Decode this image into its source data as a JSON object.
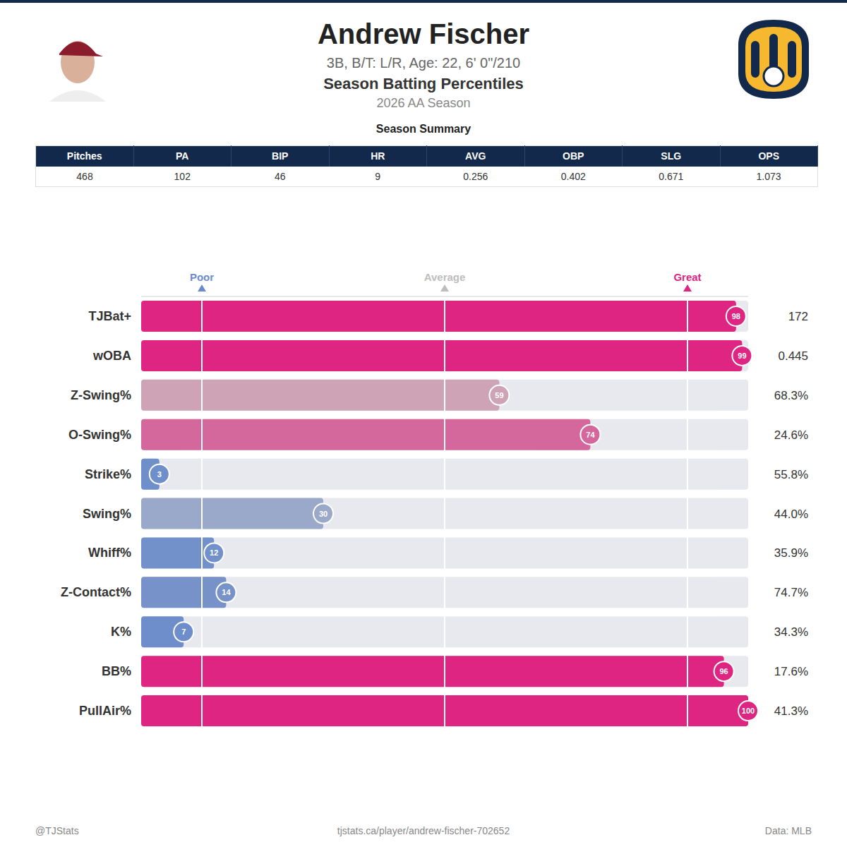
{
  "header": {
    "title": "Andrew Fischer",
    "subtitle": "3B, B/T: L/R, Age: 22, 6' 0\"/210",
    "heading": "Season Batting Percentiles",
    "season": "2026 AA Season"
  },
  "summary": {
    "title": "Season Summary",
    "columns": [
      "Pitches",
      "PA",
      "BIP",
      "HR",
      "AVG",
      "OBP",
      "SLG",
      "OPS"
    ],
    "row": [
      "468",
      "102",
      "46",
      "9",
      "0.256",
      "0.402",
      "0.671",
      "1.073"
    ]
  },
  "chart_data": {
    "type": "bar",
    "orientation": "horizontal",
    "categories": [
      "TJBat+",
      "wOBA",
      "Z-Swing%",
      "O-Swing%",
      "Strike%",
      "Swing%",
      "Whiff%",
      "Z-Contact%",
      "K%",
      "BB%",
      "PullAir%"
    ],
    "values": [
      98,
      99,
      59,
      74,
      3,
      30,
      12,
      14,
      7,
      96,
      100
    ],
    "stats": [
      "172",
      "0.445",
      "68.3%",
      "24.6%",
      "55.8%",
      "44.0%",
      "35.9%",
      "74.7%",
      "34.3%",
      "17.6%",
      "41.3%"
    ],
    "colors": [
      "#dd2581",
      "#dd2581",
      "#cfa3b6",
      "#d4679b",
      "#6f8fcb",
      "#9aa9c9",
      "#7290c9",
      "#7692c9",
      "#6e8ecb",
      "#dd2581",
      "#dd2581"
    ],
    "xlim": [
      0,
      100
    ],
    "xticks": [
      {
        "value": 10,
        "label": "Poor"
      },
      {
        "value": 50,
        "label": "Average"
      },
      {
        "value": 90,
        "label": "Great"
      }
    ],
    "grid": true,
    "data_labels": true
  },
  "footer": {
    "left": "@TJStats",
    "center": "tjstats.ca/player/andrew-fischer-702652",
    "right": "Data: MLB"
  }
}
